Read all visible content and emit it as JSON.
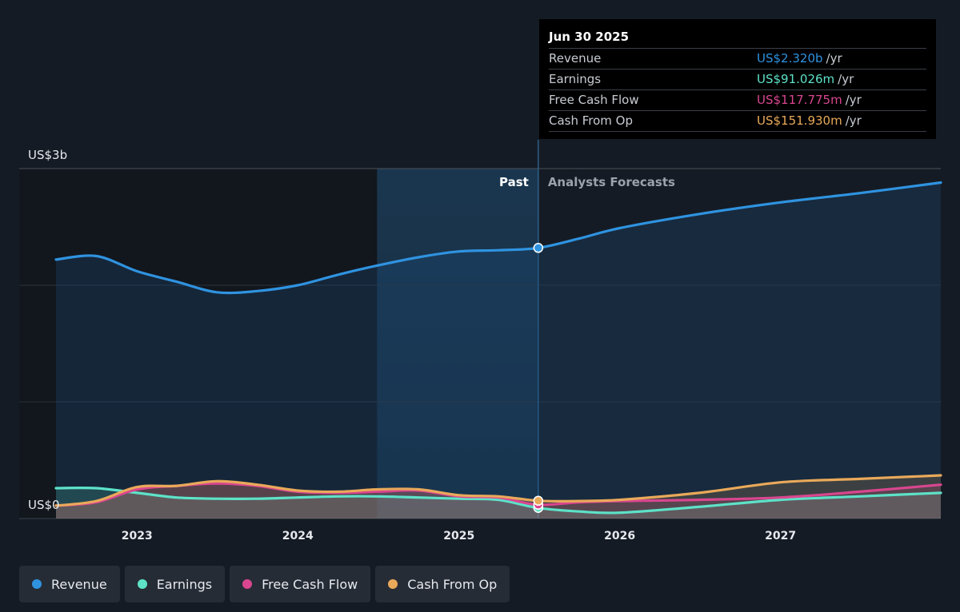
{
  "chart_data": {
    "type": "line",
    "x_start": "2022-07-01",
    "x_end": "2027-12-31",
    "past_end": "2025-06-30",
    "y_unit_label_top": "US$3b",
    "y_unit_label_bottom": "US$0",
    "ylim": [
      0,
      3.0
    ],
    "x_ticks": [
      {
        "label": "2023",
        "date": "2023-01-01"
      },
      {
        "label": "2024",
        "date": "2024-01-01"
      },
      {
        "label": "2025",
        "date": "2025-01-01"
      },
      {
        "label": "2026",
        "date": "2026-01-01"
      },
      {
        "label": "2027",
        "date": "2027-01-01"
      }
    ],
    "gridlines_y": [
      0,
      1.0,
      2.0,
      3.0
    ],
    "region_labels": {
      "past": "Past",
      "forecast": "Analysts Forecasts"
    },
    "series": [
      {
        "name": "Revenue",
        "color": "#2f93e0",
        "points": [
          [
            "2022-07-01",
            2.22
          ],
          [
            "2022-10-01",
            2.25
          ],
          [
            "2023-01-01",
            2.12
          ],
          [
            "2023-04-01",
            2.03
          ],
          [
            "2023-07-01",
            1.94
          ],
          [
            "2023-10-01",
            1.95
          ],
          [
            "2024-01-01",
            2.0
          ],
          [
            "2024-04-01",
            2.09
          ],
          [
            "2024-07-01",
            2.17
          ],
          [
            "2024-10-01",
            2.24
          ],
          [
            "2025-01-01",
            2.29
          ],
          [
            "2025-04-01",
            2.3
          ],
          [
            "2025-06-30",
            2.32
          ],
          [
            "2025-10-01",
            2.4
          ],
          [
            "2026-01-01",
            2.49
          ],
          [
            "2026-06-30",
            2.61
          ],
          [
            "2027-01-01",
            2.71
          ],
          [
            "2027-06-30",
            2.79
          ],
          [
            "2027-12-31",
            2.88
          ]
        ]
      },
      {
        "name": "Earnings",
        "color": "#5de2c8",
        "points": [
          [
            "2022-07-01",
            0.26
          ],
          [
            "2022-10-01",
            0.26
          ],
          [
            "2023-01-01",
            0.22
          ],
          [
            "2023-04-01",
            0.18
          ],
          [
            "2023-07-01",
            0.17
          ],
          [
            "2023-10-01",
            0.17
          ],
          [
            "2024-01-01",
            0.18
          ],
          [
            "2024-04-01",
            0.19
          ],
          [
            "2024-07-01",
            0.19
          ],
          [
            "2024-10-01",
            0.18
          ],
          [
            "2025-01-01",
            0.17
          ],
          [
            "2025-04-01",
            0.16
          ],
          [
            "2025-06-30",
            0.091
          ],
          [
            "2025-10-01",
            0.06
          ],
          [
            "2026-01-01",
            0.05
          ],
          [
            "2026-06-30",
            0.1
          ],
          [
            "2027-01-01",
            0.16
          ],
          [
            "2027-06-30",
            0.19
          ],
          [
            "2027-12-31",
            0.22
          ]
        ]
      },
      {
        "name": "Free Cash Flow",
        "color": "#d9468f",
        "points": [
          [
            "2022-07-01",
            0.11
          ],
          [
            "2022-10-01",
            0.14
          ],
          [
            "2023-01-01",
            0.25
          ],
          [
            "2023-04-01",
            0.28
          ],
          [
            "2023-07-01",
            0.3
          ],
          [
            "2023-10-01",
            0.28
          ],
          [
            "2024-01-01",
            0.23
          ],
          [
            "2024-04-01",
            0.22
          ],
          [
            "2024-07-01",
            0.23
          ],
          [
            "2024-10-01",
            0.24
          ],
          [
            "2025-01-01",
            0.19
          ],
          [
            "2025-04-01",
            0.18
          ],
          [
            "2025-06-30",
            0.118
          ],
          [
            "2025-10-01",
            0.14
          ],
          [
            "2026-01-01",
            0.15
          ],
          [
            "2026-06-30",
            0.16
          ],
          [
            "2027-01-01",
            0.18
          ],
          [
            "2027-06-30",
            0.23
          ],
          [
            "2027-12-31",
            0.29
          ]
        ]
      },
      {
        "name": "Cash From Op",
        "color": "#e9a95a",
        "points": [
          [
            "2022-07-01",
            0.11
          ],
          [
            "2022-10-01",
            0.15
          ],
          [
            "2023-01-01",
            0.27
          ],
          [
            "2023-04-01",
            0.28
          ],
          [
            "2023-07-01",
            0.32
          ],
          [
            "2023-10-01",
            0.29
          ],
          [
            "2024-01-01",
            0.24
          ],
          [
            "2024-04-01",
            0.23
          ],
          [
            "2024-07-01",
            0.25
          ],
          [
            "2024-10-01",
            0.25
          ],
          [
            "2025-01-01",
            0.2
          ],
          [
            "2025-04-01",
            0.19
          ],
          [
            "2025-06-30",
            0.152
          ],
          [
            "2025-10-01",
            0.15
          ],
          [
            "2026-01-01",
            0.16
          ],
          [
            "2026-06-30",
            0.22
          ],
          [
            "2027-01-01",
            0.31
          ],
          [
            "2027-06-30",
            0.34
          ],
          [
            "2027-12-31",
            0.37
          ]
        ]
      }
    ]
  },
  "tooltip": {
    "date": "Jun 30 2025",
    "rows": [
      {
        "label": "Revenue",
        "value": "US$2.320b",
        "unit": "/yr",
        "color": "#2f93e0"
      },
      {
        "label": "Earnings",
        "value": "US$91.026m",
        "unit": "/yr",
        "color": "#5de2c8"
      },
      {
        "label": "Free Cash Flow",
        "value": "US$117.775m",
        "unit": "/yr",
        "color": "#d9468f"
      },
      {
        "label": "Cash From Op",
        "value": "US$151.930m",
        "unit": "/yr",
        "color": "#e9a95a"
      }
    ]
  },
  "legend": [
    {
      "label": "Revenue",
      "color": "#2f93e0"
    },
    {
      "label": "Earnings",
      "color": "#5de2c8"
    },
    {
      "label": "Free Cash Flow",
      "color": "#d9468f"
    },
    {
      "label": "Cash From Op",
      "color": "#e9a95a"
    }
  ]
}
